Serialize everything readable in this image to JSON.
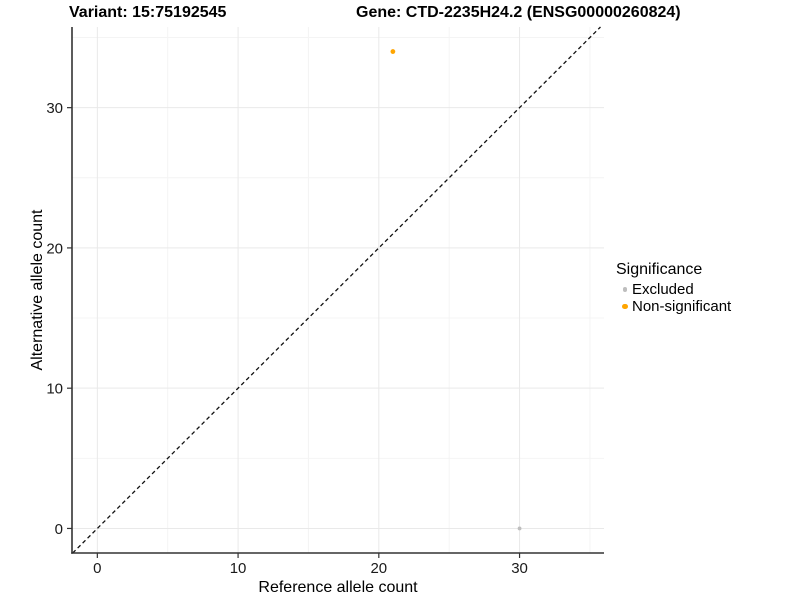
{
  "chart_data": {
    "type": "scatter",
    "title_left": "Variant: 15:75192545",
    "title_right": "Gene: CTD-2235H24.2 (ENSG00000260824)",
    "xlabel": "Reference allele count",
    "ylabel": "Alternative allele count",
    "xlim": [
      -1.8,
      36.0
    ],
    "ylim": [
      -1.75,
      35.75
    ],
    "xticks": [
      0,
      10,
      20,
      30
    ],
    "yticks": [
      0,
      10,
      20,
      30
    ],
    "x_minor_ticks": [
      5,
      15,
      25,
      35
    ],
    "y_minor_ticks": [
      5,
      15,
      25,
      35
    ],
    "grid": "on",
    "identity_line": {
      "show": true,
      "style": "dashed",
      "color": "#111111"
    },
    "legend_title": "Significance",
    "legend_position": "right",
    "series": [
      {
        "name": "Excluded",
        "color": "#BEBEBE",
        "marker_radius": 1.9,
        "points": [
          [
            30,
            0
          ]
        ]
      },
      {
        "name": "Non-significant",
        "color": "#FFA500",
        "marker_radius": 2.4,
        "points": [
          [
            21,
            34
          ]
        ]
      }
    ],
    "style": {
      "axis_line_color": "#333333",
      "grid_major_color": "#e9e9e9",
      "grid_minor_color": "#f4f4f4"
    }
  }
}
